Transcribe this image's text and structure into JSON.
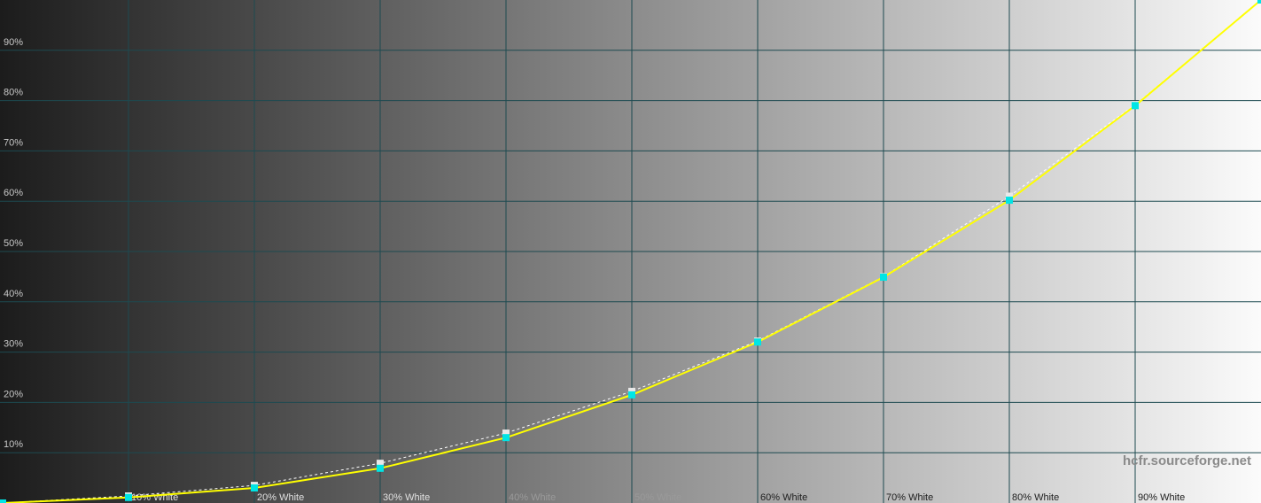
{
  "chart_data": {
    "type": "line",
    "x": [
      0,
      10,
      20,
      30,
      40,
      50,
      60,
      70,
      80,
      90,
      100
    ],
    "series": [
      {
        "color": "#ffffff",
        "values": [
          0,
          1.4,
          3.5,
          7.9,
          13.9,
          22.2,
          32.2,
          45.0,
          61.0,
          79.2,
          100
        ]
      },
      {
        "color": "#ffff00",
        "marker_color": "#00e5e5",
        "values": [
          0,
          1.1,
          3.0,
          6.9,
          13.0,
          21.5,
          32.0,
          44.9,
          60.2,
          79.0,
          100
        ]
      }
    ],
    "xlim": [
      0,
      100
    ],
    "ylim": [
      0,
      100
    ],
    "xticks": [
      {
        "value": 10,
        "label": "10% White"
      },
      {
        "value": 20,
        "label": "20% White"
      },
      {
        "value": 30,
        "label": "30% White"
      },
      {
        "value": 40,
        "label": "40% White"
      },
      {
        "value": 50,
        "label": "50% White"
      },
      {
        "value": 60,
        "label": "60% White"
      },
      {
        "value": 70,
        "label": "70% White"
      },
      {
        "value": 80,
        "label": "80% White"
      },
      {
        "value": 90,
        "label": "90% White"
      }
    ],
    "yticks": [
      {
        "value": 10,
        "label": "10%"
      },
      {
        "value": 20,
        "label": "20%"
      },
      {
        "value": 30,
        "label": "30%"
      },
      {
        "value": 40,
        "label": "40%"
      },
      {
        "value": 50,
        "label": "50%"
      },
      {
        "value": 60,
        "label": "60%"
      },
      {
        "value": 70,
        "label": "70%"
      },
      {
        "value": 80,
        "label": "80%"
      },
      {
        "value": 90,
        "label": "90%"
      }
    ],
    "grid": true,
    "grid_color": "#1d4a50",
    "watermark": "hcfr.sourceforge.net"
  }
}
